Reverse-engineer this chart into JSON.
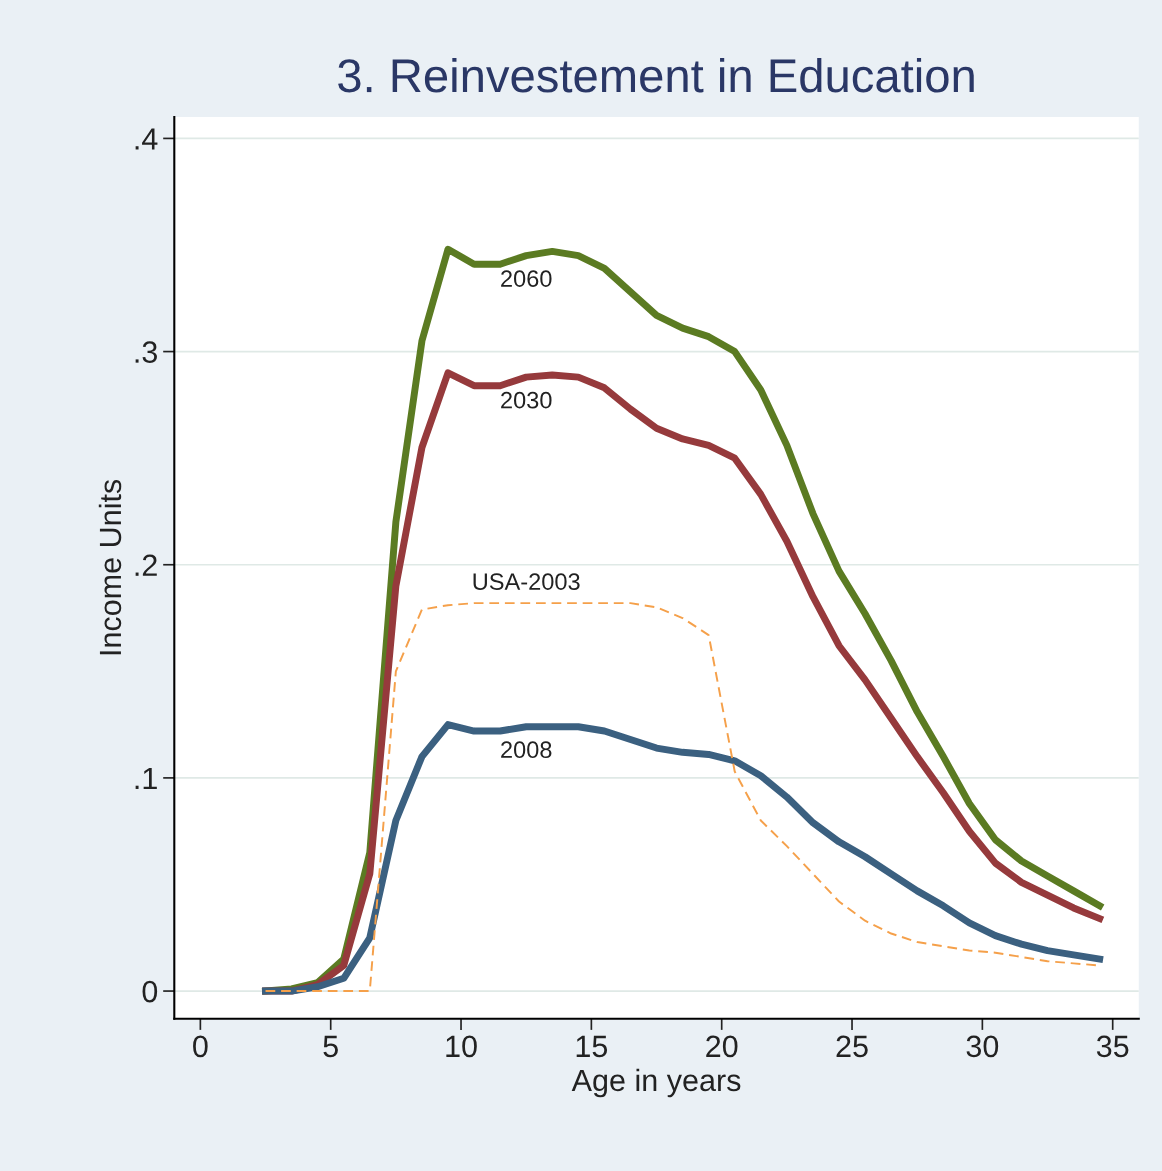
{
  "chart_data": {
    "type": "line",
    "title": "3. Reinvestement in Education",
    "xlabel": "Age in years",
    "ylabel": "Income Units",
    "x": [
      2.5,
      3.5,
      4.5,
      5.5,
      6.5,
      7.5,
      8.5,
      9.5,
      10.5,
      11.5,
      12.5,
      13.5,
      14.5,
      15.5,
      16.5,
      17.5,
      18.5,
      19.5,
      20.5,
      21.5,
      22.5,
      23.5,
      24.5,
      25.5,
      26.5,
      27.5,
      28.5,
      29.5,
      30.5,
      31.5,
      32.5,
      33.5,
      34.5
    ],
    "series": [
      {
        "name": "2060",
        "color": "#5b7b22",
        "line_style": "solid",
        "values": [
          0,
          0.001,
          0.004,
          0.015,
          0.065,
          0.22,
          0.305,
          0.348,
          0.341,
          0.341,
          0.345,
          0.347,
          0.345,
          0.339,
          0.328,
          0.317,
          0.311,
          0.307,
          0.3,
          0.282,
          0.256,
          0.224,
          0.197,
          0.177,
          0.155,
          0.131,
          0.11,
          0.088,
          0.071,
          0.061,
          0.054,
          0.047,
          0.04
        ]
      },
      {
        "name": "2030",
        "color": "#963a3c",
        "line_style": "solid",
        "values": [
          0,
          0,
          0.003,
          0.012,
          0.055,
          0.19,
          0.255,
          0.29,
          0.284,
          0.284,
          0.288,
          0.289,
          0.288,
          0.283,
          0.273,
          0.264,
          0.259,
          0.256,
          0.25,
          0.233,
          0.211,
          0.185,
          0.162,
          0.146,
          0.128,
          0.11,
          0.093,
          0.075,
          0.06,
          0.051,
          0.045,
          0.039,
          0.034
        ]
      },
      {
        "name": "USA-2003",
        "color": "#f5a04a",
        "line_style": "dashed",
        "values": [
          0,
          0,
          0,
          0,
          0,
          0.15,
          0.179,
          0.181,
          0.182,
          0.182,
          0.182,
          0.182,
          0.182,
          0.182,
          0.182,
          0.18,
          0.175,
          0.167,
          0.103,
          0.08,
          0.068,
          0.055,
          0.042,
          0.033,
          0.027,
          0.023,
          0.021,
          0.019,
          0.018,
          0.016,
          0.014,
          0.013,
          0.012
        ]
      },
      {
        "name": "2008",
        "color": "#3b6080",
        "line_style": "solid",
        "values": [
          0,
          0,
          0.002,
          0.006,
          0.025,
          0.08,
          0.11,
          0.125,
          0.122,
          0.122,
          0.124,
          0.124,
          0.124,
          0.122,
          0.118,
          0.114,
          0.112,
          0.111,
          0.108,
          0.101,
          0.091,
          0.079,
          0.07,
          0.063,
          0.055,
          0.047,
          0.04,
          0.032,
          0.026,
          0.022,
          0.019,
          0.017,
          0.015
        ]
      }
    ],
    "xlim": [
      -1,
      36
    ],
    "xticks": [
      0,
      5,
      10,
      15,
      20,
      25,
      30,
      35
    ],
    "ylim": [
      -0.013,
      0.41
    ],
    "yticks": [
      0,
      {
        "value": 0.1,
        "label": ".1"
      },
      {
        "value": 0.2,
        "label": ".2"
      },
      {
        "value": 0.3,
        "label": ".3"
      },
      {
        "value": 0.4,
        "label": ".4"
      }
    ],
    "grid": "y",
    "legend": false,
    "marker": "none"
  }
}
